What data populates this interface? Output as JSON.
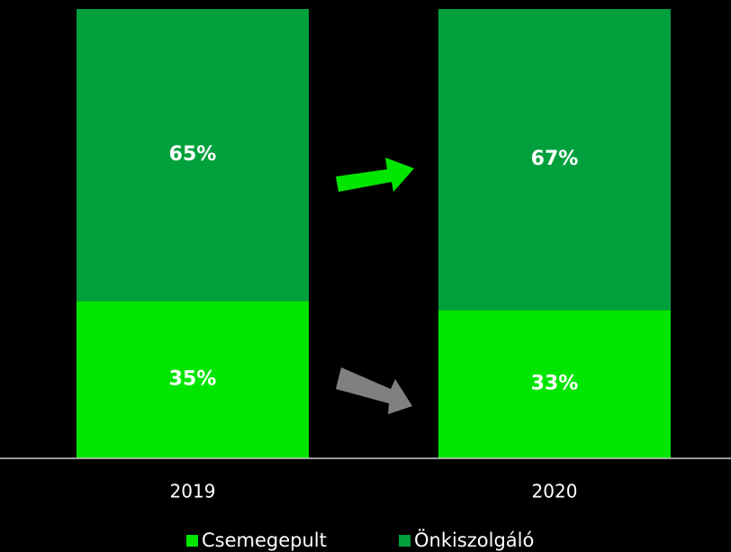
{
  "chart_data": {
    "type": "stacked_bar",
    "categories": [
      "2019",
      "2020"
    ],
    "series": [
      {
        "name": "Csemegepult",
        "color": "#00e600",
        "values": [
          35,
          33
        ],
        "value_labels": [
          "35%",
          "33%"
        ]
      },
      {
        "name": "Önkiszolgáló",
        "color": "#00a03c",
        "values": [
          65,
          67
        ],
        "value_labels": [
          "65%",
          "67%"
        ]
      }
    ],
    "ylim": [
      0,
      100
    ]
  }
}
